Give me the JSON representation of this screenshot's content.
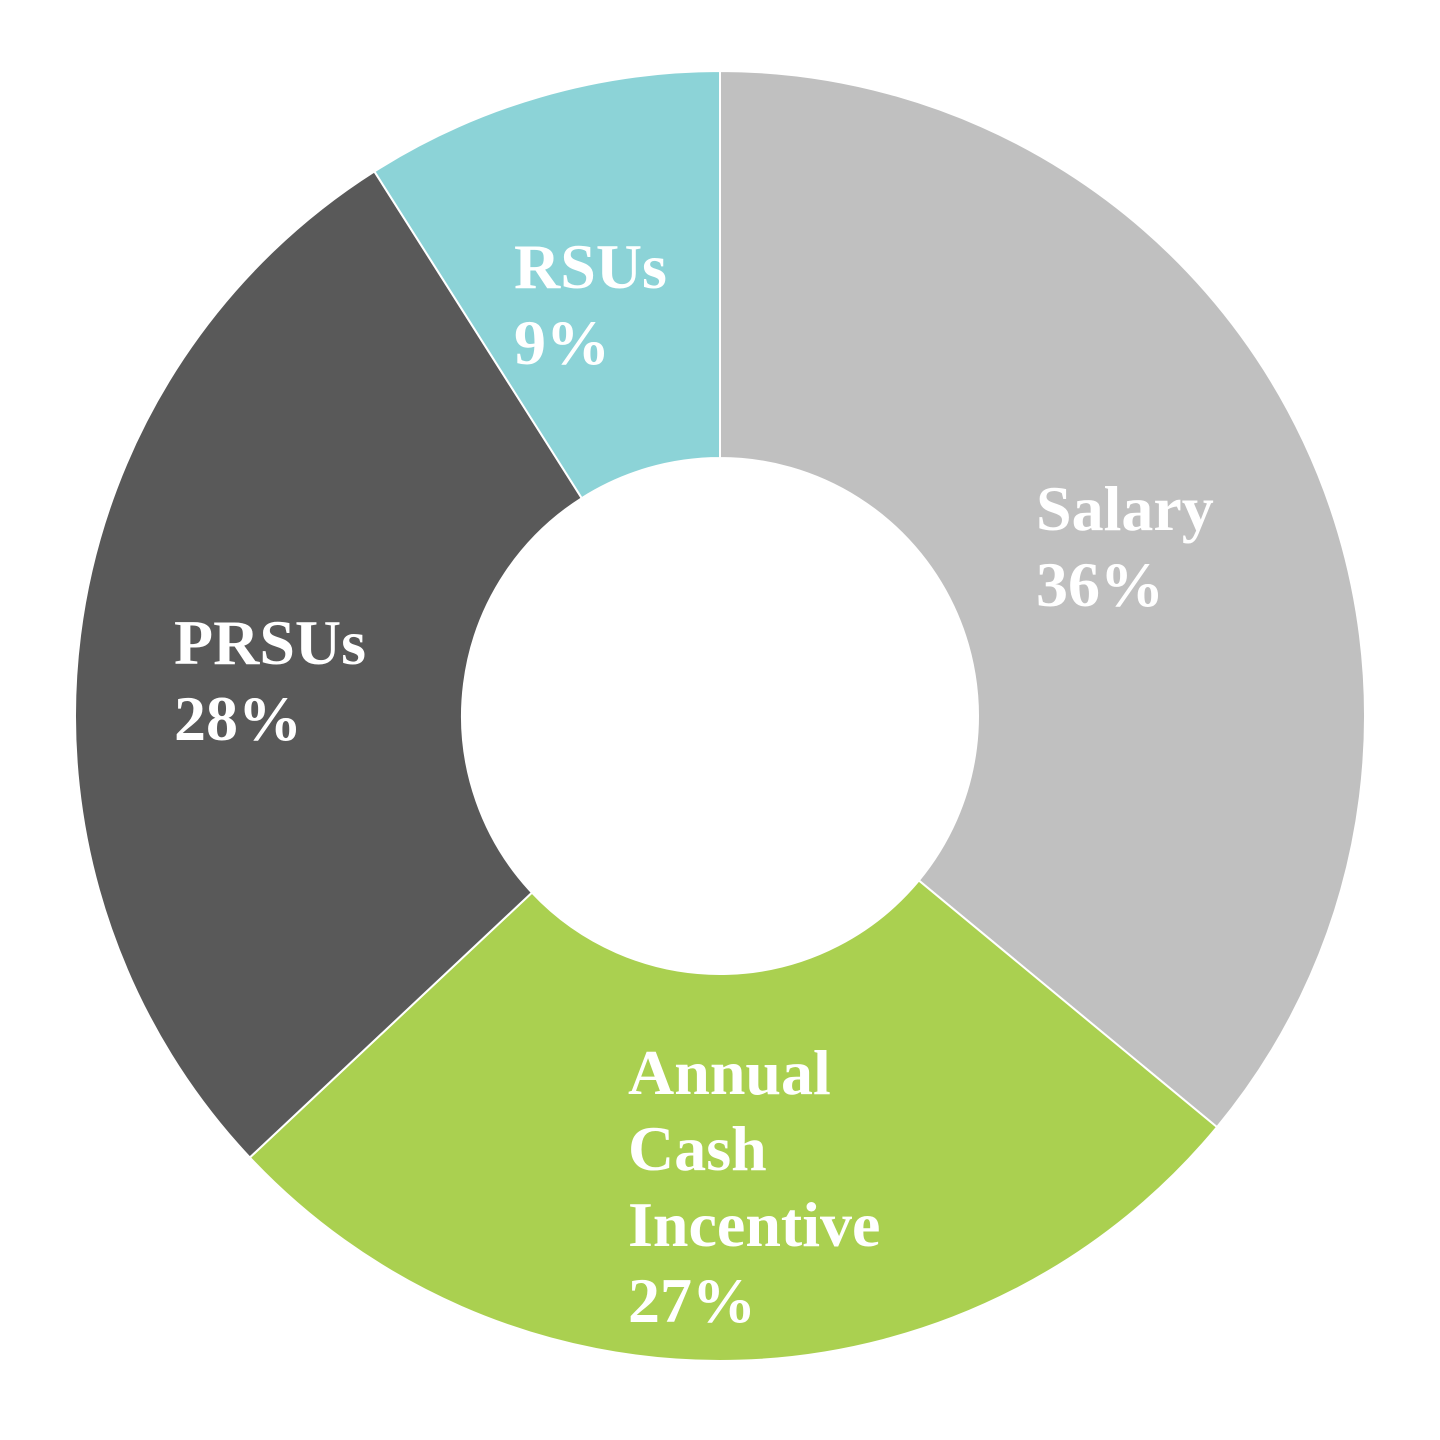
{
  "chart_data": {
    "type": "pie",
    "donut": true,
    "start_angle_deg": 0,
    "direction": "clockwise",
    "slices": [
      {
        "label_lines": [
          "Salary"
        ],
        "percent_label": "36%",
        "value": 36,
        "color": "#c0c0c0"
      },
      {
        "label_lines": [
          "Annual",
          "Cash",
          "Incentive"
        ],
        "percent_label": "27%",
        "value": 27,
        "color": "#aad050"
      },
      {
        "label_lines": [
          "PRSUs"
        ],
        "percent_label": "28%",
        "value": 28,
        "color": "#595959"
      },
      {
        "label_lines": [
          "RSUs"
        ],
        "percent_label": "9%",
        "value": 9,
        "color": "#8cd3d7"
      }
    ],
    "legend": "none"
  }
}
